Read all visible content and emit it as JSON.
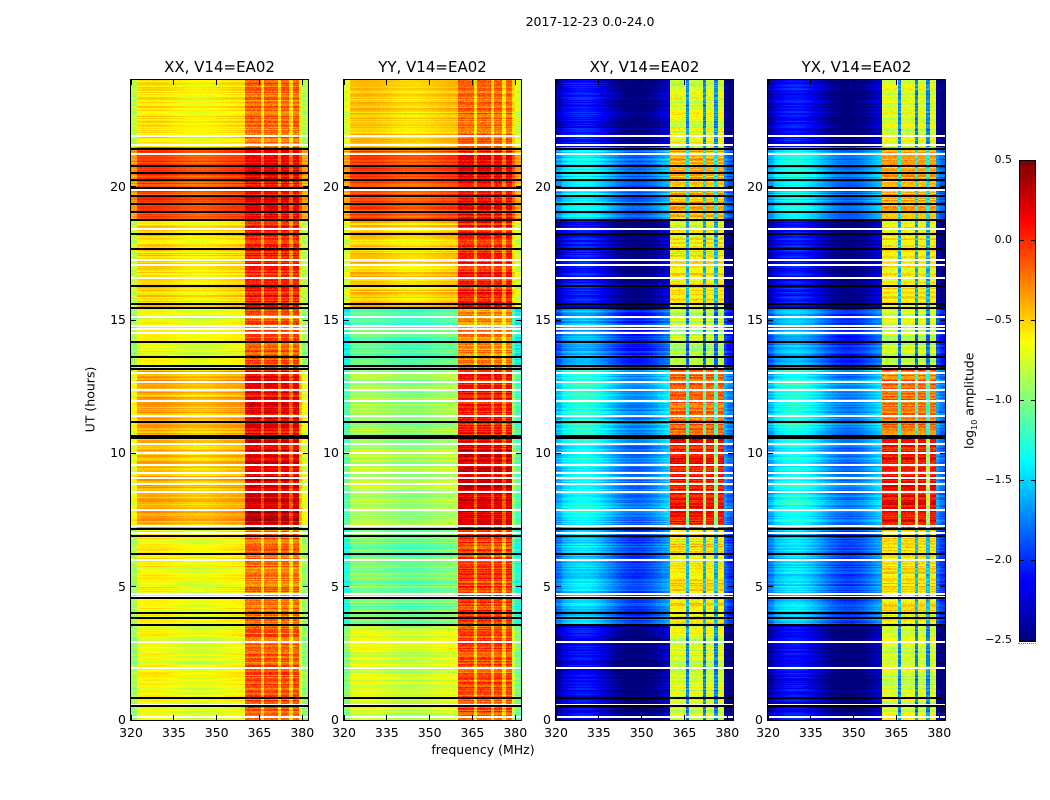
{
  "figure": {
    "suptitle": "2017-12-23 0.0-24.0"
  },
  "chart_data": {
    "type": "heatmap",
    "title": "2017-12-23 0.0-24.0",
    "xlabel": "frequency (MHz)",
    "ylabel": "UT (hours)",
    "xlim": [
      320,
      382
    ],
    "ylim": [
      0,
      24
    ],
    "x_ticks": [
      320,
      335,
      350,
      365,
      380
    ],
    "y_ticks": [
      0,
      5,
      10,
      15,
      20
    ],
    "colormap": "jet",
    "colorbar": {
      "label_prefix": "log",
      "label_sub": "10",
      "label_suffix": " amplitude",
      "range": [
        -2.5,
        0.5
      ],
      "ticks": [
        "0.5",
        "0.0",
        "−0.5",
        "−1.0",
        "−1.5",
        "−2.0",
        "−2.5"
      ],
      "tick_values": [
        0.5,
        0.0,
        -0.5,
        -1.0,
        -1.5,
        -2.0,
        -2.5
      ]
    },
    "rfi_band_mhz": [
      360,
      379
    ],
    "rfi_subband_gaps_mhz": [
      366,
      372,
      376
    ],
    "panels": [
      {
        "name": "XX",
        "title": "XX, V14=EA02",
        "baseline_level": -0.62,
        "rfi_level": -0.1,
        "segments": [
          {
            "ut": [
              0,
              3.6
            ],
            "base": -0.7,
            "rfi": -0.15
          },
          {
            "ut": [
              3.6,
              7.2
            ],
            "base": -0.65,
            "rfi": -0.2
          },
          {
            "ut": [
              7.2,
              10.6
            ],
            "base": -0.42,
            "rfi": 0.25
          },
          {
            "ut": [
              10.6,
              13.2
            ],
            "base": -0.42,
            "rfi": 0.15
          },
          {
            "ut": [
              13.2,
              15.5
            ],
            "base": -0.68,
            "rfi": -0.1
          },
          {
            "ut": [
              15.5,
              18.8
            ],
            "base": -0.55,
            "rfi": 0.05
          },
          {
            "ut": [
              18.8,
              21.5
            ],
            "base": -0.1,
            "rfi": 0.15
          },
          {
            "ut": [
              21.5,
              24
            ],
            "base": -0.6,
            "rfi": -0.2
          }
        ]
      },
      {
        "name": "YY",
        "title": "YY, V14=EA02",
        "baseline_level": -0.7,
        "rfi_level": -0.1,
        "segments": [
          {
            "ut": [
              0,
              3.6
            ],
            "base": -0.75,
            "rfi": -0.1
          },
          {
            "ut": [
              3.6,
              7.2
            ],
            "base": -1.05,
            "rfi": -0.05
          },
          {
            "ut": [
              7.2,
              10.6
            ],
            "base": -0.85,
            "rfi": 0.25
          },
          {
            "ut": [
              10.6,
              13.2
            ],
            "base": -0.9,
            "rfi": 0.1
          },
          {
            "ut": [
              13.2,
              15.5
            ],
            "base": -1.15,
            "rfi": -0.3
          },
          {
            "ut": [
              15.5,
              18.8
            ],
            "base": -0.5,
            "rfi": 0.05
          },
          {
            "ut": [
              18.8,
              21.5
            ],
            "base": -0.12,
            "rfi": 0.12
          },
          {
            "ut": [
              21.5,
              24
            ],
            "base": -0.5,
            "rfi": -0.2
          }
        ]
      },
      {
        "name": "XY",
        "title": "XY, V14=EA02",
        "baseline_level": -2.2,
        "rfi_level": -0.7,
        "segments": [
          {
            "ut": [
              0,
              3.6
            ],
            "base": -2.35,
            "rfi": -0.75
          },
          {
            "ut": [
              3.6,
              7.2
            ],
            "base": -1.7,
            "rfi": -0.55
          },
          {
            "ut": [
              7.2,
              10.6
            ],
            "base": -1.55,
            "rfi": 0.1
          },
          {
            "ut": [
              10.6,
              13.2
            ],
            "base": -1.5,
            "rfi": -0.2
          },
          {
            "ut": [
              13.2,
              15.5
            ],
            "base": -1.8,
            "rfi": -0.8
          },
          {
            "ut": [
              15.5,
              18.8
            ],
            "base": -2.3,
            "rfi": -0.6
          },
          {
            "ut": [
              18.8,
              21.5
            ],
            "base": -1.6,
            "rfi": -0.4
          },
          {
            "ut": [
              21.5,
              24
            ],
            "base": -2.3,
            "rfi": -0.7
          }
        ]
      },
      {
        "name": "YX",
        "title": "YX, V14=EA02",
        "baseline_level": -2.2,
        "rfi_level": -0.7,
        "segments": [
          {
            "ut": [
              0,
              3.6
            ],
            "base": -2.35,
            "rfi": -0.75
          },
          {
            "ut": [
              3.6,
              7.2
            ],
            "base": -1.7,
            "rfi": -0.55
          },
          {
            "ut": [
              7.2,
              10.6
            ],
            "base": -1.55,
            "rfi": 0.1
          },
          {
            "ut": [
              10.6,
              13.2
            ],
            "base": -1.5,
            "rfi": -0.2
          },
          {
            "ut": [
              13.2,
              15.5
            ],
            "base": -1.8,
            "rfi": -0.8
          },
          {
            "ut": [
              15.5,
              18.8
            ],
            "base": -2.3,
            "rfi": -0.6
          },
          {
            "ut": [
              18.8,
              21.5
            ],
            "base": -1.6,
            "rfi": -0.4
          },
          {
            "ut": [
              21.5,
              24
            ],
            "base": -2.3,
            "rfi": -0.7
          }
        ]
      }
    ],
    "flagged_rows_ut": {
      "black": [
        0.55,
        0.85,
        3.6,
        3.85,
        4.05,
        4.6,
        6.25,
        6.95,
        7.2,
        10.6,
        10.7,
        11.2,
        13.2,
        13.3,
        13.65,
        14.2,
        15.5,
        15.65,
        16.3,
        17.7,
        18.25,
        18.8,
        19.1,
        19.4,
        19.7,
        20.0,
        20.3,
        20.55,
        20.8,
        21.45
      ],
      "white": [
        0.15,
        0.6,
        2.0,
        2.95,
        4.65,
        4.75,
        6.05,
        7.05,
        7.3,
        7.9,
        8.6,
        8.9,
        9.1,
        9.3,
        9.6,
        10.05,
        10.4,
        11.45,
        12.0,
        12.4,
        12.7,
        13.05,
        14.55,
        14.7,
        14.8,
        15.15,
        16.6,
        17.1,
        17.3,
        18.45,
        19.9,
        21.25,
        21.6,
        21.95
      ]
    }
  }
}
